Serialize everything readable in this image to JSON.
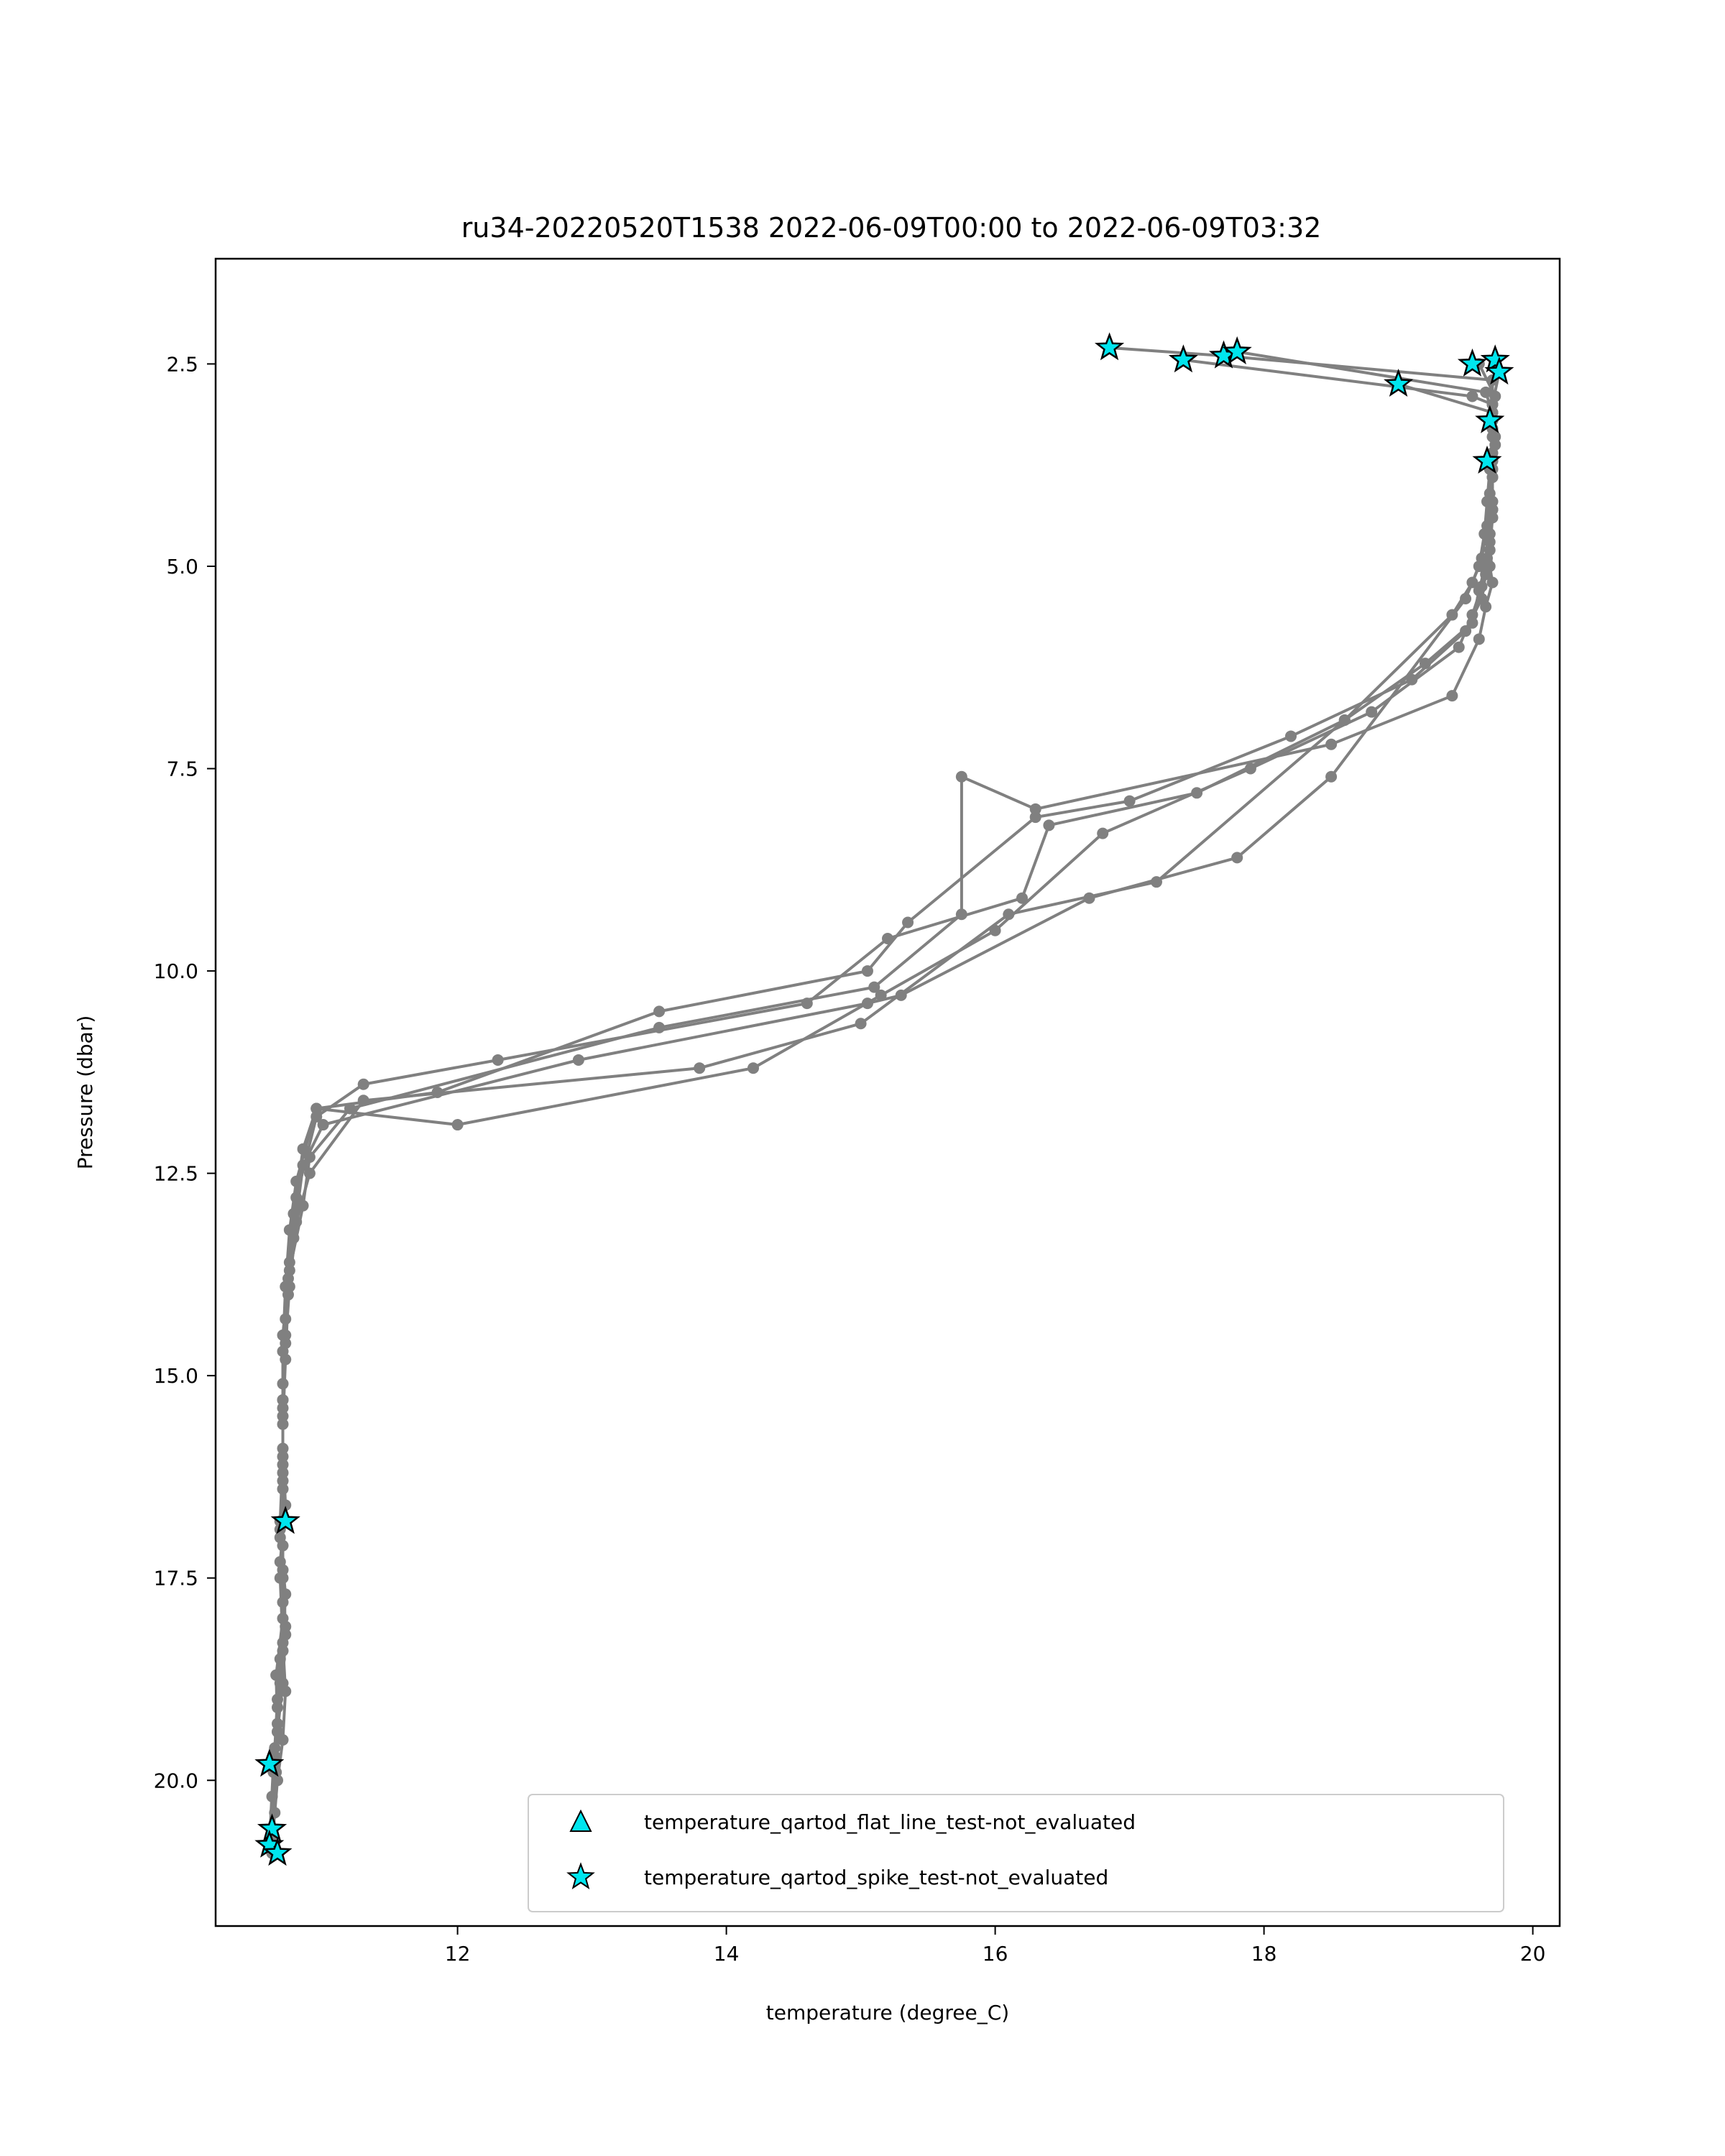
{
  "chart_data": {
    "type": "scatter",
    "title": "ru34-20220520T1538 2022-06-09T00:00 to 2022-06-09T03:32",
    "xlabel": "temperature (degree_C)",
    "ylabel": "Pressure (dbar)",
    "xlim": [
      10.2,
      20.2
    ],
    "ylim": [
      21.8,
      1.2
    ],
    "y_inverted": true,
    "xticks": [
      12,
      14,
      16,
      18,
      20
    ],
    "yticks": [
      2.5,
      5.0,
      7.5,
      10.0,
      12.5,
      15.0,
      17.5,
      20.0
    ],
    "grid": false,
    "legend_position": "lower-right",
    "line_color": "#808080",
    "marker_color": "#00e5ee",
    "series": [
      {
        "x": [
          16.85,
          17.7,
          19.7,
          19.7,
          19.7,
          19.7,
          19.68,
          19.68,
          19.7,
          19.65,
          19.6,
          19.4,
          18.5,
          16.3,
          15.75,
          15.75,
          15.1,
          13.5,
          11.2,
          10.9,
          10.85,
          10.75,
          10.72,
          10.7,
          10.7,
          10.68,
          10.7,
          10.72,
          10.7,
          10.66,
          10.65,
          10.62,
          10.62
        ],
        "y": [
          2.3,
          2.4,
          2.7,
          3.3,
          3.8,
          4.3,
          4.7,
          5.0,
          5.2,
          5.5,
          5.9,
          6.6,
          7.2,
          8.0,
          7.6,
          9.3,
          10.2,
          10.7,
          11.7,
          12.3,
          12.9,
          13.7,
          14.5,
          15.3,
          16.1,
          16.9,
          17.5,
          18.2,
          18.8,
          19.4,
          19.9,
          20.6,
          20.9
        ]
      },
      {
        "x": [
          17.4,
          19.55,
          19.7,
          19.7,
          19.7,
          19.7,
          19.68,
          19.66,
          19.6,
          19.55,
          19.2,
          18.6,
          17.5,
          16.4,
          16.2,
          15.2,
          14.6,
          12.3,
          11.3,
          10.95,
          10.8,
          10.75,
          10.72,
          10.7,
          10.7,
          10.72,
          10.68,
          10.7,
          10.65,
          10.66,
          10.63,
          10.6
        ],
        "y": [
          2.45,
          2.9,
          3.0,
          3.2,
          3.6,
          4.2,
          4.6,
          4.9,
          5.3,
          5.7,
          6.2,
          6.9,
          7.8,
          8.2,
          9.1,
          9.6,
          10.4,
          11.1,
          11.4,
          11.8,
          12.8,
          13.6,
          14.3,
          15.1,
          15.9,
          16.6,
          17.3,
          18.0,
          18.7,
          19.3,
          19.8,
          20.8
        ]
      },
      {
        "x": [
          17.8,
          19.65,
          19.7,
          19.72,
          19.7,
          19.7,
          19.68,
          19.65,
          19.62,
          19.5,
          19.1,
          18.2,
          17.0,
          16.3,
          15.35,
          15.05,
          13.5,
          11.85,
          10.95,
          10.8,
          10.75,
          10.72,
          10.7,
          10.7,
          10.7,
          10.68,
          10.72,
          10.7,
          10.66,
          10.64,
          10.62
        ],
        "y": [
          2.35,
          2.85,
          3.1,
          3.4,
          3.9,
          4.4,
          4.8,
          5.1,
          5.4,
          5.8,
          6.4,
          7.1,
          7.9,
          8.1,
          9.4,
          10.0,
          10.5,
          11.5,
          11.7,
          12.6,
          13.2,
          13.9,
          14.7,
          15.5,
          16.3,
          17.0,
          17.7,
          18.4,
          19.0,
          19.6,
          20.2
        ]
      },
      {
        "x": [
          19.0,
          19.7,
          19.72,
          19.7,
          19.7,
          19.68,
          19.66,
          19.62,
          19.55,
          19.45,
          18.8,
          17.9,
          16.8,
          16.0,
          15.15,
          14.2,
          12.0,
          10.95,
          10.85,
          10.78,
          10.74,
          10.7,
          10.7,
          10.7,
          10.68,
          10.7,
          10.72,
          10.68,
          10.66,
          10.63,
          10.62
        ],
        "y": [
          2.75,
          3.1,
          3.5,
          3.9,
          4.3,
          4.6,
          4.95,
          5.25,
          5.6,
          6.0,
          6.8,
          7.5,
          8.3,
          9.5,
          10.3,
          11.2,
          11.9,
          11.7,
          12.2,
          13.0,
          13.8,
          14.5,
          15.3,
          16.0,
          16.8,
          17.4,
          18.1,
          18.8,
          19.4,
          19.9,
          20.7
        ]
      },
      {
        "x": [
          19.6,
          19.72,
          19.7,
          19.7,
          19.68,
          19.66,
          19.62,
          19.55,
          19.4,
          18.6,
          17.2,
          16.1,
          15.0,
          13.8,
          11.3,
          10.9,
          10.8,
          10.75,
          10.72,
          10.7,
          10.7,
          10.7,
          10.68,
          10.7,
          10.72,
          10.7,
          10.66,
          10.64,
          10.62
        ],
        "y": [
          2.5,
          2.9,
          3.3,
          3.7,
          4.1,
          4.5,
          4.9,
          5.2,
          5.6,
          6.9,
          8.9,
          9.3,
          10.65,
          11.2,
          11.6,
          12.5,
          13.1,
          13.9,
          14.6,
          15.4,
          16.2,
          16.8,
          17.5,
          18.3,
          18.9,
          19.5,
          20.0,
          20.4,
          20.8
        ]
      },
      {
        "x": [
          19.75,
          19.7,
          19.7,
          19.68,
          19.66,
          19.64,
          19.6,
          19.5,
          18.5,
          17.8,
          16.7,
          15.3,
          15.05,
          12.9,
          11.0,
          10.85,
          10.78,
          10.74,
          10.72,
          10.7,
          10.7,
          10.7,
          10.7,
          10.68,
          10.66,
          10.64,
          10.62
        ],
        "y": [
          2.6,
          3.0,
          3.4,
          3.8,
          4.2,
          4.6,
          5.0,
          5.4,
          7.6,
          8.6,
          9.1,
          10.3,
          10.4,
          11.1,
          11.9,
          12.4,
          13.3,
          14.0,
          14.8,
          15.6,
          16.4,
          17.1,
          17.8,
          18.5,
          19.1,
          19.7,
          20.9
        ]
      }
    ],
    "legend": [
      {
        "label": "temperature_qartod_flat_line_test-not_evaluated",
        "marker": "triangle",
        "points": []
      },
      {
        "label": "temperature_qartod_spike_test-not_evaluated",
        "marker": "star",
        "points": [
          {
            "x": 16.85,
            "y": 2.3
          },
          {
            "x": 17.4,
            "y": 2.45
          },
          {
            "x": 17.7,
            "y": 2.4
          },
          {
            "x": 17.8,
            "y": 2.35
          },
          {
            "x": 19.0,
            "y": 2.75
          },
          {
            "x": 19.55,
            "y": 2.5
          },
          {
            "x": 19.72,
            "y": 2.45
          },
          {
            "x": 19.75,
            "y": 2.6
          },
          {
            "x": 19.68,
            "y": 3.2
          },
          {
            "x": 19.66,
            "y": 3.7
          },
          {
            "x": 10.72,
            "y": 16.8
          },
          {
            "x": 10.6,
            "y": 19.8
          },
          {
            "x": 10.62,
            "y": 20.6
          },
          {
            "x": 10.6,
            "y": 20.8
          },
          {
            "x": 10.66,
            "y": 20.9
          }
        ]
      }
    ]
  }
}
